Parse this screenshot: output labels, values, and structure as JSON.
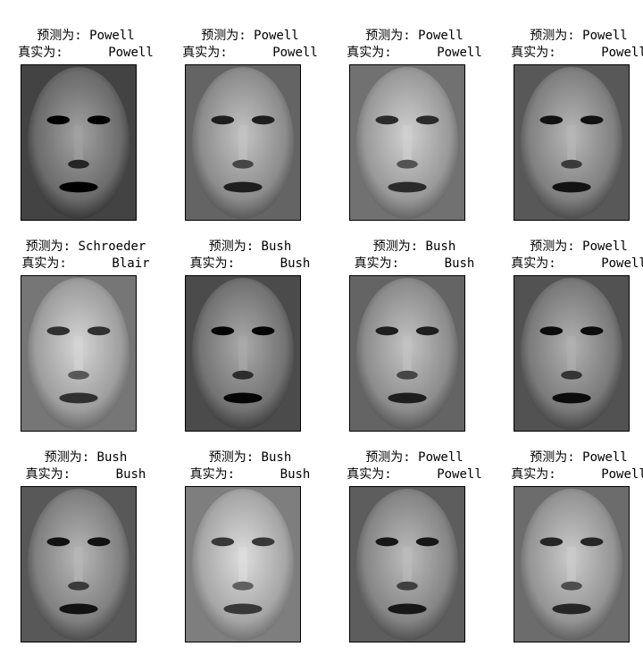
{
  "figure": {
    "panels": [
      {
        "pred_label": "预测为: Powell",
        "true_label": "真实为:      Powell",
        "tone": 0.42
      },
      {
        "pred_label": "预测为: Powell",
        "true_label": "真实为:      Powell",
        "tone": 0.55
      },
      {
        "pred_label": "预测为: Powell",
        "true_label": "真实为:      Powell",
        "tone": 0.6
      },
      {
        "pred_label": "预测为: Powell",
        "true_label": "真实为:      Powell",
        "tone": 0.5
      },
      {
        "pred_label": "预测为: Schroeder",
        "true_label": "真实为:      Blair",
        "tone": 0.62
      },
      {
        "pred_label": "预测为: Bush",
        "true_label": "真实为:      Bush",
        "tone": 0.45
      },
      {
        "pred_label": "预测为: Bush",
        "true_label": "真实为:      Bush",
        "tone": 0.55
      },
      {
        "pred_label": "预测为: Powell",
        "true_label": "真实为:      Powell",
        "tone": 0.48
      },
      {
        "pred_label": "预测为: Bush",
        "true_label": "真实为:      Bush",
        "tone": 0.5
      },
      {
        "pred_label": "预测为: Bush",
        "true_label": "真实为:      Bush",
        "tone": 0.65
      },
      {
        "pred_label": "预测为: Powell",
        "true_label": "真实为:      Powell",
        "tone": 0.52
      },
      {
        "pred_label": "预测为: Powell",
        "true_label": "真实为:      Powell",
        "tone": 0.58
      }
    ]
  }
}
